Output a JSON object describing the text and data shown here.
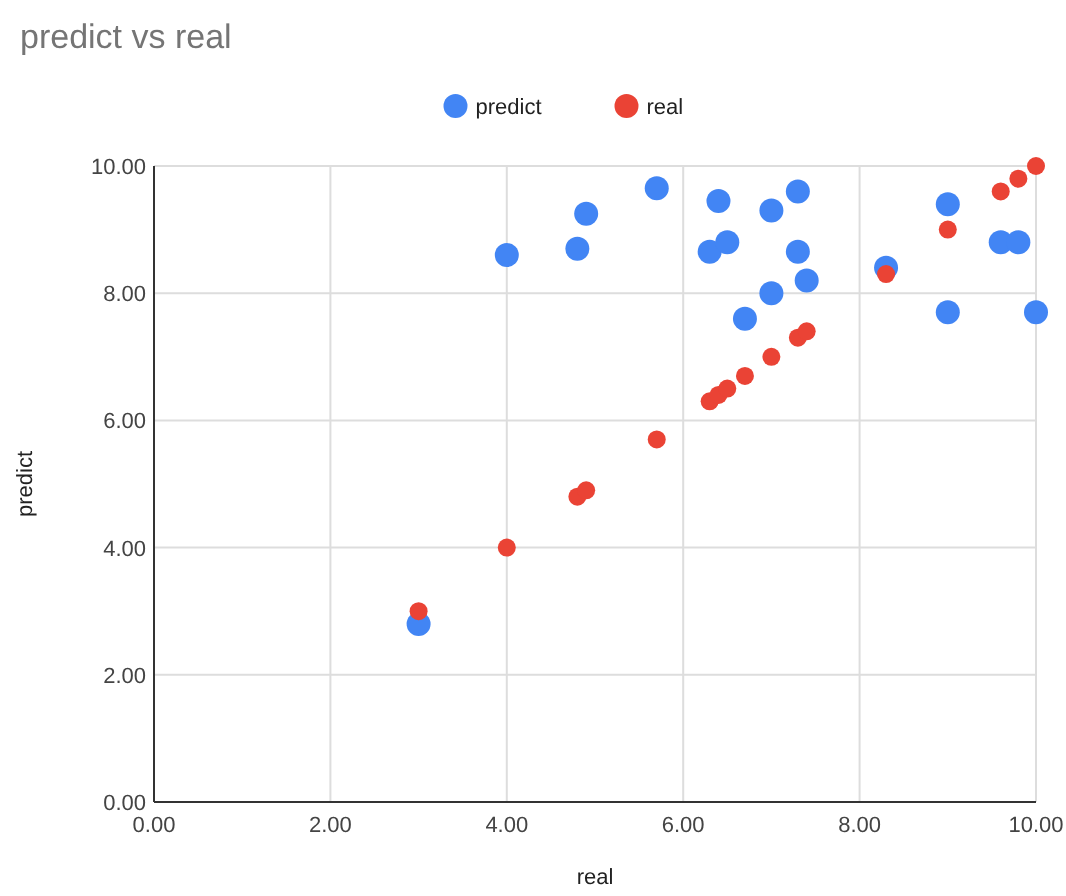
{
  "chart_data": {
    "type": "scatter",
    "title": "predict vs real",
    "xlabel": "real",
    "ylabel": "predict",
    "xlim": [
      0,
      10
    ],
    "ylim": [
      0,
      10
    ],
    "xticks": [
      {
        "value": 0,
        "label": "0.00"
      },
      {
        "value": 2,
        "label": "2.00"
      },
      {
        "value": 4,
        "label": "4.00"
      },
      {
        "value": 6,
        "label": "6.00"
      },
      {
        "value": 8,
        "label": "8.00"
      },
      {
        "value": 10,
        "label": "10.00"
      }
    ],
    "yticks": [
      {
        "value": 0,
        "label": "0.00"
      },
      {
        "value": 2,
        "label": "2.00"
      },
      {
        "value": 4,
        "label": "4.00"
      },
      {
        "value": 6,
        "label": "6.00"
      },
      {
        "value": 8,
        "label": "8.00"
      },
      {
        "value": 10,
        "label": "10.00"
      }
    ],
    "grid": true,
    "legend": "top",
    "marker": "circle",
    "series": [
      {
        "name": "predict",
        "color": "#4285f4",
        "x": [
          3,
          4,
          4.8,
          4.9,
          5.7,
          6.3,
          6.4,
          6.5,
          6.7,
          7,
          7,
          7.3,
          7.3,
          7.4,
          8.3,
          9,
          9,
          9.6,
          9.8,
          10
        ],
        "values": [
          2.8,
          8.6,
          8.7,
          9.25,
          9.65,
          8.65,
          9.45,
          8.8,
          7.6,
          9.3,
          8.0,
          9.6,
          8.65,
          8.2,
          8.4,
          9.4,
          7.7,
          8.8,
          8.8,
          7.7
        ]
      },
      {
        "name": "real",
        "color": "#ea4335",
        "x": [
          3,
          4,
          4.8,
          4.9,
          5.7,
          6.3,
          6.4,
          6.5,
          6.7,
          7,
          7.3,
          7.4,
          8.3,
          9,
          9.6,
          9.8,
          10
        ],
        "values": [
          3,
          4,
          4.8,
          4.9,
          5.7,
          6.3,
          6.4,
          6.5,
          6.7,
          7,
          7.3,
          7.4,
          8.3,
          9,
          9.6,
          9.8,
          10
        ]
      }
    ]
  }
}
